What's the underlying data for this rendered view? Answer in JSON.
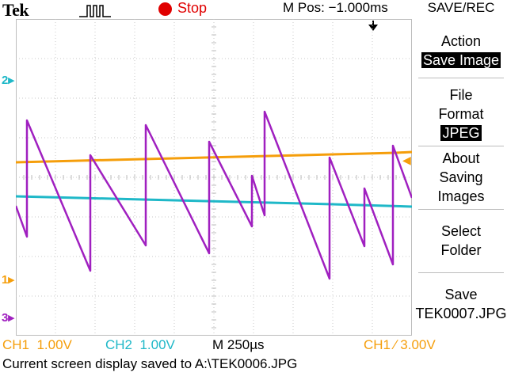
{
  "header": {
    "brand": "Tek",
    "run_state": "Stop",
    "m_pos": "M Pos: −1.000ms",
    "menu_title": "SAVE/REC"
  },
  "colors": {
    "ch1": "#f59e0b",
    "ch2": "#1fb8c8",
    "ch3": "#a020c0",
    "stop": "#e00000"
  },
  "channel_markers": {
    "ch1": "1",
    "ch2": "2",
    "ch3": "3"
  },
  "side_menu": {
    "action_label": "Action",
    "action_value": "Save Image",
    "format_label_1": "File",
    "format_label_2": "Format",
    "format_value": "JPEG",
    "about_1": "About",
    "about_2": "Saving",
    "about_3": "Images",
    "select_1": "Select",
    "select_2": "Folder",
    "save_1": "Save",
    "save_2": "TEK0007.JPG"
  },
  "status": {
    "ch1_scale": "CH1  1.00V",
    "ch2_scale": "CH2  1.00V",
    "time_scale": "M 250µs",
    "trigger": "CH1 ∕ 3.00V",
    "message": "Current screen display saved to A:\\TEK0006.JPG"
  },
  "icons": {
    "trigger_icon": "pulse-edge-icon",
    "trigger_position": "trigger-position-arrow-icon",
    "trigger_level": "trigger-level-arrow-icon"
  }
}
